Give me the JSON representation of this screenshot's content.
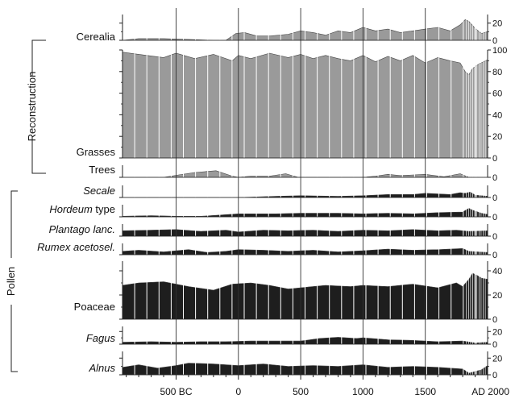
{
  "chart_data": {
    "type": "area",
    "x_range": [
      -930,
      2000
    ],
    "x_ticks": [
      {
        "value": -500,
        "label": "500 BC"
      },
      {
        "value": 0,
        "label": "0"
      },
      {
        "value": 500,
        "label": "500"
      },
      {
        "value": 1000,
        "label": "1000"
      },
      {
        "value": 1500,
        "label": "1500"
      },
      {
        "value": 2000,
        "label": "AD 2000"
      }
    ],
    "group_labels": {
      "reconstruction": "Reconstruction",
      "pollen": "Pollen"
    },
    "colors": {
      "reconstruction": "#9a9a9a",
      "pollen": "#1e1e1e",
      "strip": "#ffffff"
    },
    "panels": [
      {
        "id": "cerealia",
        "name": "Cerealia",
        "italic": false,
        "group": "reconstruction",
        "color": "reconstruction",
        "right_ticks": [
          {
            "value": 0,
            "label": "0"
          },
          {
            "value": 20,
            "label": "20"
          }
        ],
        "ylim": [
          0,
          30
        ],
        "x": [
          -930,
          -800,
          -600,
          -400,
          -200,
          -100,
          -20,
          50,
          150,
          250,
          400,
          500,
          600,
          700,
          800,
          900,
          1000,
          1100,
          1200,
          1300,
          1400,
          1500,
          1600,
          1700,
          1780,
          1820,
          1850,
          1900,
          1950,
          2000
        ],
        "y": [
          0,
          2,
          2,
          1,
          0,
          0,
          8,
          9,
          5,
          5,
          7,
          11,
          9,
          6,
          11,
          9,
          15,
          11,
          13,
          9,
          11,
          13,
          15,
          11,
          18,
          24,
          22,
          14,
          8,
          10
        ]
      },
      {
        "id": "grasses",
        "name": "Grasses",
        "italic": false,
        "group": "reconstruction",
        "color": "reconstruction",
        "right_ticks": [
          {
            "value": 0,
            "label": "0"
          },
          {
            "value": 20,
            "label": "20"
          },
          {
            "value": 40,
            "label": "40"
          },
          {
            "value": 60,
            "label": "60"
          },
          {
            "value": 80,
            "label": "80"
          },
          {
            "value": 100,
            "label": "100"
          }
        ],
        "ylim": [
          0,
          100
        ],
        "x": [
          -930,
          -800,
          -600,
          -500,
          -350,
          -200,
          -50,
          0,
          100,
          250,
          400,
          500,
          600,
          700,
          800,
          900,
          1000,
          1100,
          1200,
          1300,
          1400,
          1500,
          1600,
          1700,
          1780,
          1820,
          1850,
          1880,
          1930,
          2000
        ],
        "y": [
          98,
          96,
          93,
          97,
          92,
          96,
          90,
          95,
          92,
          97,
          93,
          96,
          92,
          95,
          92,
          90,
          95,
          89,
          94,
          90,
          95,
          88,
          93,
          90,
          88,
          80,
          77,
          83,
          87,
          91
        ]
      },
      {
        "id": "trees",
        "name": "Trees",
        "italic": false,
        "group": "reconstruction",
        "color": "reconstruction",
        "right_ticks": [
          {
            "value": 0,
            "label": "0"
          }
        ],
        "ylim": [
          0,
          20
        ],
        "x": [
          -930,
          -600,
          -480,
          -350,
          -180,
          -50,
          0,
          100,
          250,
          380,
          480,
          600,
          800,
          1000,
          1100,
          1200,
          1300,
          1500,
          1650,
          1780,
          1850,
          1900,
          2000
        ],
        "y": [
          0,
          0,
          4,
          8,
          11,
          2,
          0,
          2,
          2,
          6,
          0,
          0,
          0,
          0,
          2,
          5,
          3,
          5,
          1,
          6,
          0,
          0,
          0
        ]
      },
      {
        "id": "secale",
        "name": "Secale",
        "italic": true,
        "group": "pollen",
        "color": "pollen",
        "right_ticks": [
          {
            "value": 0,
            "label": "0"
          }
        ],
        "ylim": [
          0,
          20
        ],
        "x": [
          -930,
          -500,
          0,
          300,
          500,
          800,
          1000,
          1200,
          1400,
          1500,
          1700,
          1780,
          1820,
          1860,
          1900,
          2000
        ],
        "y": [
          0,
          0,
          0,
          2,
          3,
          2,
          3,
          5,
          5,
          7,
          5,
          8,
          7,
          9,
          4,
          2
        ]
      },
      {
        "id": "hordeum",
        "name": "Hordeum",
        "suffix": " type",
        "italic": true,
        "group": "pollen",
        "color": "pollen",
        "right_ticks": [
          {
            "value": 0,
            "label": "0"
          }
        ],
        "ylim": [
          0,
          20
        ],
        "x": [
          -930,
          -700,
          -500,
          -300,
          0,
          300,
          500,
          800,
          1000,
          1200,
          1400,
          1600,
          1800,
          1850,
          1880,
          1950,
          2000
        ],
        "y": [
          1,
          2,
          1,
          1,
          5,
          5,
          6,
          6,
          5,
          6,
          5,
          7,
          8,
          14,
          11,
          6,
          4
        ]
      },
      {
        "id": "plantago",
        "name": "Plantago lanc.",
        "italic": true,
        "group": "pollen",
        "color": "pollen",
        "right_ticks": [
          {
            "value": 0,
            "label": "0"
          }
        ],
        "ylim": [
          0,
          20
        ],
        "x": [
          -930,
          -700,
          -500,
          -300,
          -100,
          0,
          200,
          400,
          600,
          800,
          1000,
          1200,
          1400,
          1600,
          1750,
          1850,
          2000
        ],
        "y": [
          9,
          10,
          11,
          8,
          10,
          7,
          10,
          9,
          10,
          8,
          10,
          9,
          11,
          9,
          10,
          8,
          9
        ]
      },
      {
        "id": "rumex",
        "name": "Rumex acetosel.",
        "italic": true,
        "group": "pollen",
        "color": "pollen",
        "right_ticks": [
          {
            "value": 0,
            "label": "0"
          }
        ],
        "ylim": [
          0,
          20
        ],
        "x": [
          -930,
          -800,
          -600,
          -400,
          -250,
          -100,
          0,
          200,
          400,
          600,
          800,
          1000,
          1200,
          1400,
          1600,
          1800,
          1850,
          2000
        ],
        "y": [
          6,
          8,
          5,
          9,
          4,
          6,
          9,
          8,
          6,
          8,
          5,
          7,
          10,
          8,
          9,
          11,
          6,
          4
        ]
      },
      {
        "id": "poaceae",
        "name": "Poaceae",
        "italic": false,
        "group": "pollen",
        "color": "pollen",
        "right_ticks": [
          {
            "value": 0,
            "label": "0"
          },
          {
            "value": 20,
            "label": "20"
          },
          {
            "value": 40,
            "label": "40"
          }
        ],
        "ylim": [
          0,
          48
        ],
        "x": [
          -930,
          -800,
          -600,
          -400,
          -200,
          -50,
          100,
          250,
          400,
          500,
          700,
          900,
          1000,
          1200,
          1400,
          1600,
          1750,
          1800,
          1850,
          1880,
          1920,
          1950,
          2000
        ],
        "y": [
          28,
          30,
          31,
          27,
          24,
          29,
          30,
          28,
          25,
          26,
          28,
          27,
          28,
          27,
          29,
          26,
          30,
          27,
          33,
          38,
          36,
          34,
          33
        ]
      },
      {
        "id": "fagus",
        "name": "Fagus",
        "italic": true,
        "group": "pollen",
        "color": "pollen",
        "right_ticks": [
          {
            "value": 0,
            "label": "0"
          },
          {
            "value": 20,
            "label": "20"
          }
        ],
        "ylim": [
          0,
          28
        ],
        "x": [
          -930,
          -700,
          -500,
          -300,
          -100,
          100,
          300,
          500,
          650,
          800,
          950,
          1000,
          1200,
          1400,
          1600,
          1800,
          1900,
          2000
        ],
        "y": [
          3,
          4,
          3,
          4,
          4,
          5,
          5,
          5,
          9,
          11,
          9,
          10,
          7,
          6,
          4,
          5,
          2,
          3
        ]
      },
      {
        "id": "alnus",
        "name": "Alnus",
        "italic": true,
        "group": "pollen",
        "color": "pollen",
        "right_ticks": [
          {
            "value": 0,
            "label": "0"
          },
          {
            "value": 20,
            "label": "20"
          }
        ],
        "ylim": [
          0,
          28
        ],
        "x": [
          -930,
          -800,
          -650,
          -500,
          -400,
          -200,
          0,
          200,
          400,
          600,
          800,
          1000,
          1200,
          1400,
          1600,
          1800,
          1850,
          1950,
          2000
        ],
        "y": [
          9,
          12,
          8,
          11,
          14,
          13,
          11,
          13,
          10,
          11,
          10,
          12,
          9,
          10,
          9,
          7,
          2,
          6,
          11
        ]
      }
    ]
  }
}
